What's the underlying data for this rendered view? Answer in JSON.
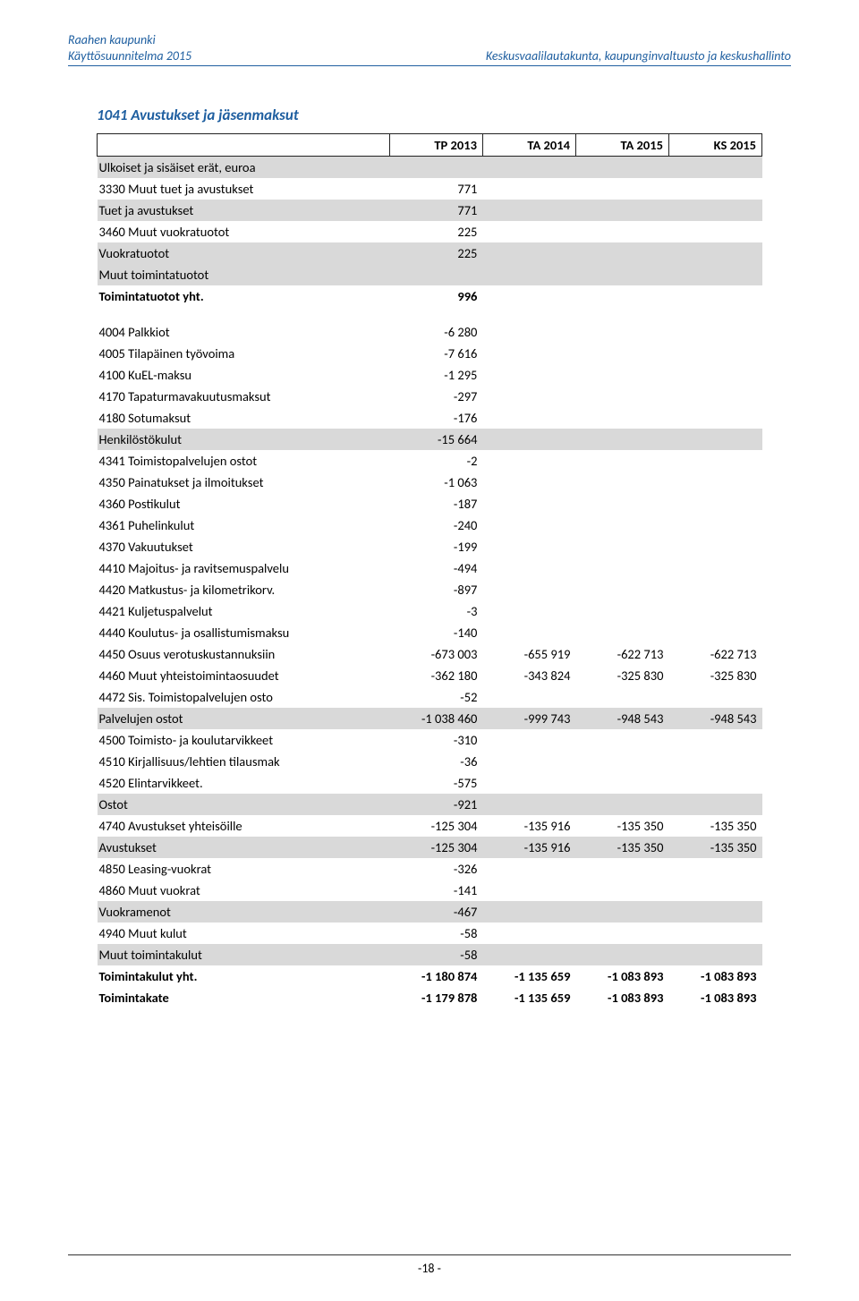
{
  "header": {
    "org": "Raahen kaupunki",
    "doc": "Käyttösuunnitelma 2015",
    "dept": "Keskusvaalilautakunta, kaupunginvaltuusto ja keskushallinto"
  },
  "section_title": "1041 Avustukset ja jäsenmaksut",
  "columns": {
    "c1": "TP 2013",
    "c2": "TA 2014",
    "c3": "TA 2015",
    "c4": "KS 2015"
  },
  "rows": [
    {
      "label": "Ulkoiset ja sisäiset erät, euroa",
      "v": [
        "",
        "",
        "",
        ""
      ],
      "shade": true
    },
    {
      "label": "3330 Muut tuet ja avustukset",
      "v": [
        "771",
        "",
        "",
        ""
      ]
    },
    {
      "label": "Tuet ja avustukset",
      "v": [
        "771",
        "",
        "",
        ""
      ],
      "shade": true
    },
    {
      "label": "3460 Muut vuokratuotot",
      "v": [
        "225",
        "",
        "",
        ""
      ]
    },
    {
      "label": "Vuokratuotot",
      "v": [
        "225",
        "",
        "",
        ""
      ],
      "shade": true
    },
    {
      "label": "Muut toimintatuotot",
      "v": [
        "",
        "",
        "",
        ""
      ],
      "shade": true
    },
    {
      "label": "Toimintatuotot yht.",
      "v": [
        "996",
        "",
        "",
        ""
      ],
      "bold": true
    },
    {
      "spacer": true
    },
    {
      "label": "4004 Palkkiot",
      "v": [
        "-6 280",
        "",
        "",
        ""
      ]
    },
    {
      "label": "4005 Tilapäinen työvoima",
      "v": [
        "-7 616",
        "",
        "",
        ""
      ]
    },
    {
      "label": "4100 KuEL-maksu",
      "v": [
        "-1 295",
        "",
        "",
        ""
      ]
    },
    {
      "label": "4170 Tapaturmavakuutusmaksut",
      "v": [
        "-297",
        "",
        "",
        ""
      ]
    },
    {
      "label": "4180 Sotumaksut",
      "v": [
        "-176",
        "",
        "",
        ""
      ]
    },
    {
      "label": "Henkilöstökulut",
      "v": [
        "-15 664",
        "",
        "",
        ""
      ],
      "shade": true
    },
    {
      "label": "4341 Toimistopalvelujen ostot",
      "v": [
        "-2",
        "",
        "",
        ""
      ]
    },
    {
      "label": "4350 Painatukset ja ilmoitukset",
      "v": [
        "-1 063",
        "",
        "",
        ""
      ]
    },
    {
      "label": "4360 Postikulut",
      "v": [
        "-187",
        "",
        "",
        ""
      ]
    },
    {
      "label": "4361 Puhelinkulut",
      "v": [
        "-240",
        "",
        "",
        ""
      ]
    },
    {
      "label": "4370 Vakuutukset",
      "v": [
        "-199",
        "",
        "",
        ""
      ]
    },
    {
      "label": "4410 Majoitus- ja ravitsemuspalvelu",
      "v": [
        "-494",
        "",
        "",
        ""
      ]
    },
    {
      "label": "4420 Matkustus- ja kilometrikorv.",
      "v": [
        "-897",
        "",
        "",
        ""
      ]
    },
    {
      "label": "4421 Kuljetuspalvelut",
      "v": [
        "-3",
        "",
        "",
        ""
      ]
    },
    {
      "label": "4440 Koulutus- ja osallistumismaksu",
      "v": [
        "-140",
        "",
        "",
        ""
      ]
    },
    {
      "label": "4450 Osuus verotuskustannuksiin",
      "v": [
        "-673 003",
        "-655 919",
        "-622 713",
        "-622 713"
      ]
    },
    {
      "label": "4460 Muut yhteistoimintaosuudet",
      "v": [
        "-362 180",
        "-343 824",
        "-325 830",
        "-325 830"
      ]
    },
    {
      "label": "4472 Sis. Toimistopalvelujen osto",
      "v": [
        "-52",
        "",
        "",
        ""
      ]
    },
    {
      "label": "Palvelujen ostot",
      "v": [
        "-1 038 460",
        "-999 743",
        "-948 543",
        "-948 543"
      ],
      "shade": true
    },
    {
      "label": "4500 Toimisto- ja koulutarvikkeet",
      "v": [
        "-310",
        "",
        "",
        ""
      ]
    },
    {
      "label": "4510 Kirjallisuus/lehtien tilausmak",
      "v": [
        "-36",
        "",
        "",
        ""
      ]
    },
    {
      "label": "4520 Elintarvikkeet.",
      "v": [
        "-575",
        "",
        "",
        ""
      ]
    },
    {
      "label": "Ostot",
      "v": [
        "-921",
        "",
        "",
        ""
      ],
      "shade": true
    },
    {
      "label": "4740 Avustukset yhteisöille",
      "v": [
        "-125 304",
        "-135 916",
        "-135 350",
        "-135 350"
      ]
    },
    {
      "label": "Avustukset",
      "v": [
        "-125 304",
        "-135 916",
        "-135 350",
        "-135 350"
      ],
      "shade": true
    },
    {
      "label": "4850 Leasing-vuokrat",
      "v": [
        "-326",
        "",
        "",
        ""
      ]
    },
    {
      "label": "4860 Muut vuokrat",
      "v": [
        "-141",
        "",
        "",
        ""
      ]
    },
    {
      "label": "Vuokramenot",
      "v": [
        "-467",
        "",
        "",
        ""
      ],
      "shade": true
    },
    {
      "label": "4940 Muut kulut",
      "v": [
        "-58",
        "",
        "",
        ""
      ]
    },
    {
      "label": "Muut toimintakulut",
      "v": [
        "-58",
        "",
        "",
        ""
      ],
      "shade": true
    },
    {
      "label": "Toimintakulut yht.",
      "v": [
        "-1 180 874",
        "-1 135 659",
        "-1 083 893",
        "-1 083 893"
      ],
      "bold": true
    },
    {
      "label": "Toimintakate",
      "v": [
        "-1 179 878",
        "-1 135 659",
        "-1 083 893",
        "-1 083 893"
      ],
      "bold": true
    }
  ],
  "footer": {
    "page": "-18 -"
  },
  "colors": {
    "accent": "#1f5fa0",
    "shade": "#d9d9d9",
    "text": "#222222",
    "border": "#222222",
    "background": "#ffffff"
  },
  "typography": {
    "body_fontsize_pt": 11,
    "title_fontsize_pt": 13,
    "font_family": "Calibri"
  }
}
